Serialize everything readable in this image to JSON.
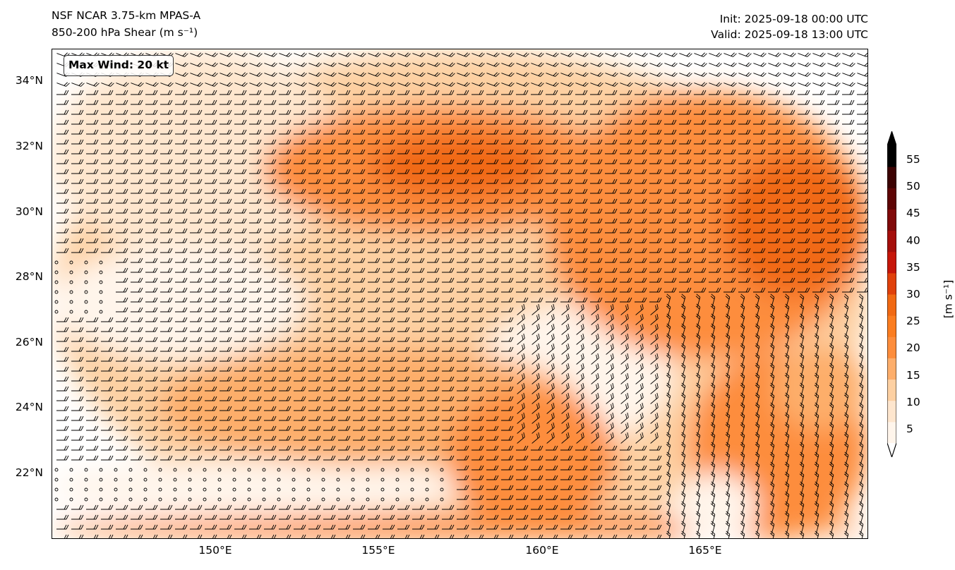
{
  "header": {
    "title": "NSF NCAR 3.75-km MPAS-A",
    "subtitle": "850-200 hPa Shear (m s⁻¹)",
    "init": "Init: 2025-09-18 00:00 UTC",
    "valid": "Valid: 2025-09-18 13:00 UTC"
  },
  "map": {
    "annotation": "Max Wind: 20 kt",
    "lat_labels": [
      "34°N",
      "32°N",
      "30°N",
      "28°N",
      "26°N",
      "24°N",
      "22°N"
    ],
    "lon_labels": [
      "150°E",
      "155°E",
      "160°E",
      "165°E"
    ],
    "lat_range": [
      20.0,
      35.0
    ],
    "lon_range": [
      145.0,
      170.0
    ],
    "field_colors": [
      "#fff5eb",
      "#fee6ce",
      "#fdd0a2",
      "#fdae6b",
      "#fd8d3c",
      "#f16913",
      "#d94801"
    ]
  },
  "colorbar": {
    "ticks": [
      "55",
      "50",
      "45",
      "40",
      "35",
      "30",
      "25",
      "20",
      "15",
      "10",
      "5"
    ],
    "unit": "[m s⁻¹]",
    "colors": [
      "#fff5eb",
      "#fee6ce",
      "#fdd0a2",
      "#fdae6b",
      "#fd8d3c",
      "#fb7d20",
      "#f16913",
      "#e0410b",
      "#c6160a",
      "#a50f0b",
      "#800a0a",
      "#5e0505",
      "#3c0202",
      "#000000"
    ]
  }
}
